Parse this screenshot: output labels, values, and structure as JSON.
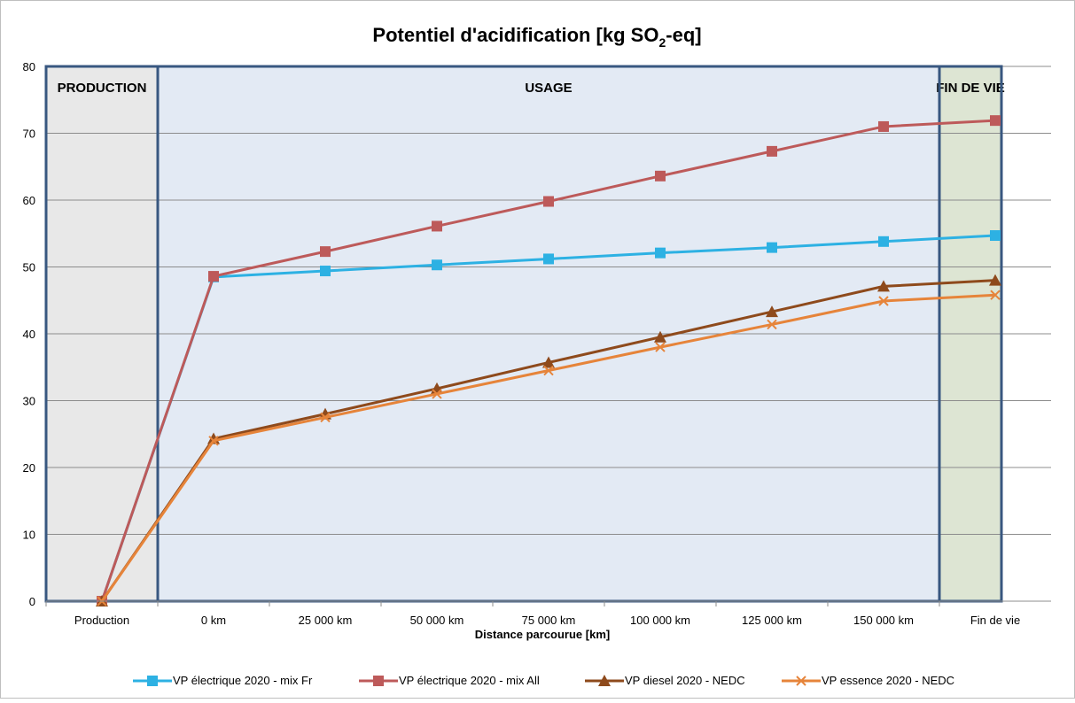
{
  "chart_data": {
    "type": "line",
    "title": "Potentiel d'acidification [kg SO2-eq]",
    "title_parts": {
      "main": "Potentiel d'acidification [kg SO",
      "subscript": "2",
      "tail": "-eq]"
    },
    "xlabel": "Distance parcourue [km]",
    "ylabel": "",
    "categories": [
      "Production",
      "0 km",
      "25 000 km",
      "50 000 km",
      "75 000 km",
      "100 000 km",
      "125 000 km",
      "150 000 km",
      "Fin de vie"
    ],
    "ylim": [
      0,
      80
    ],
    "yticks": [
      0,
      10,
      20,
      30,
      40,
      50,
      60,
      70,
      80
    ],
    "grid": true,
    "legend_position": "bottom",
    "phases": [
      {
        "label": "PRODUCTION",
        "color": "#e8e8e8"
      },
      {
        "label": "USAGE",
        "color": "#e3eaf4"
      },
      {
        "label": "FIN DE VIE",
        "color": "#dde5d3"
      }
    ],
    "series": [
      {
        "name": "VP électrique 2020 - mix Fr",
        "color": "#2db1e3",
        "marker": "square",
        "values": [
          0,
          48.5,
          49.4,
          50.3,
          51.2,
          52.1,
          52.9,
          53.8,
          54.7
        ]
      },
      {
        "name": "VP électrique 2020 - mix All",
        "color": "#bd5a5a",
        "marker": "square",
        "values": [
          0,
          48.6,
          52.3,
          56.1,
          59.8,
          63.6,
          67.3,
          71.0,
          71.9
        ]
      },
      {
        "name": "VP diesel 2020 - NEDC",
        "color": "#8e4a1c",
        "marker": "triangle",
        "values": [
          0,
          24.3,
          28.0,
          31.8,
          35.7,
          39.5,
          43.3,
          47.1,
          48.0
        ]
      },
      {
        "name": "VP essence 2020 - NEDC",
        "color": "#e6843a",
        "marker": "x",
        "values": [
          0,
          24.0,
          27.5,
          31.0,
          34.5,
          38.0,
          41.4,
          44.9,
          45.8
        ]
      }
    ]
  }
}
